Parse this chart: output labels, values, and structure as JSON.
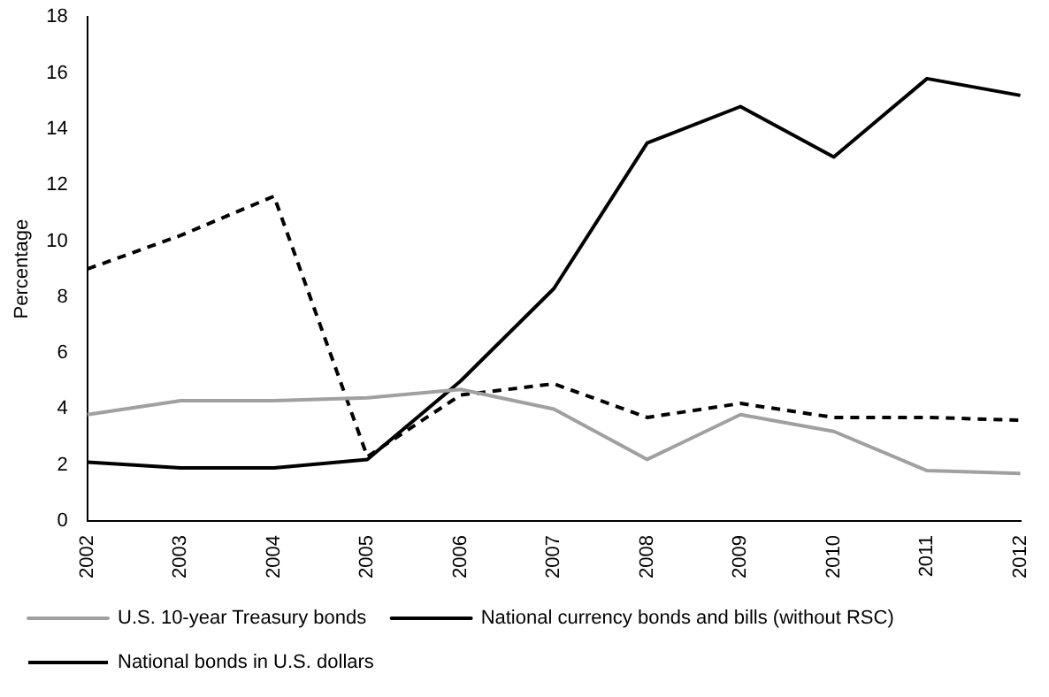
{
  "chart_data": {
    "type": "line",
    "ylabel": "Percentage",
    "categories": [
      "2002",
      "2003",
      "2004",
      "2005",
      "2006",
      "2007",
      "2008",
      "2009",
      "2010",
      "2011",
      "2012"
    ],
    "series": [
      {
        "name": "U.S. 10-year Treasury bonds",
        "color": "#a0a0a0",
        "line_style": "solid",
        "values": [
          3.8,
          4.3,
          4.3,
          4.4,
          4.7,
          4.0,
          2.2,
          3.8,
          3.2,
          1.8,
          1.7
        ]
      },
      {
        "name": "National currency bonds and bills (without RSC)",
        "color": "#000000",
        "line_style": "solid",
        "values": [
          2.1,
          1.9,
          1.9,
          2.2,
          5.0,
          8.3,
          13.5,
          14.8,
          13.0,
          15.8,
          15.2
        ]
      },
      {
        "name": "National bonds in U.S. dollars",
        "color": "#000000",
        "line_style": "dashed",
        "values": [
          9.0,
          10.2,
          11.6,
          2.3,
          4.5,
          4.9,
          3.7,
          4.2,
          3.7,
          3.7,
          3.6
        ]
      }
    ],
    "ylim": [
      0,
      18
    ],
    "yticks": [
      0,
      2,
      4,
      6,
      8,
      10,
      12,
      14,
      16,
      18
    ],
    "grid": false,
    "legend": "bottom",
    "marker": "none"
  }
}
